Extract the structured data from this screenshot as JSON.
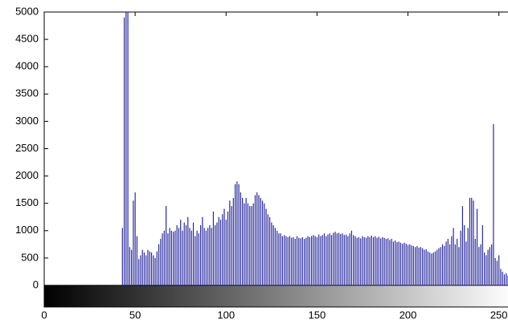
{
  "chart_data": {
    "type": "histogram-stem",
    "color": "#2a2a9e",
    "xlim": [
      0,
      255
    ],
    "ylim": [
      0,
      5000
    ],
    "xticks": [
      0,
      50,
      100,
      150,
      200,
      250
    ],
    "yticks": [
      0,
      500,
      1000,
      1500,
      2000,
      2500,
      3000,
      3500,
      4000,
      4500,
      5000
    ],
    "values": [
      0,
      0,
      0,
      0,
      0,
      0,
      0,
      0,
      0,
      0,
      0,
      0,
      0,
      0,
      0,
      0,
      0,
      0,
      0,
      0,
      0,
      0,
      0,
      0,
      0,
      0,
      0,
      0,
      0,
      0,
      0,
      0,
      0,
      0,
      0,
      0,
      0,
      0,
      0,
      0,
      0,
      0,
      0,
      1050,
      4900,
      5000,
      5000,
      700,
      650,
      1550,
      1700,
      900,
      480,
      550,
      650,
      600,
      550,
      650,
      620,
      600,
      550,
      500,
      620,
      750,
      850,
      950,
      1000,
      1450,
      950,
      1050,
      1000,
      980,
      1000,
      1100,
      1050,
      1200,
      1000,
      1150,
      1100,
      1250,
      1050,
      1000,
      1150,
      900,
      1000,
      950,
      1100,
      1250,
      1050,
      1000,
      1050,
      1100,
      1050,
      1350,
      1100,
      1150,
      1250,
      1200,
      1300,
      1400,
      1200,
      1350,
      1550,
      1450,
      1600,
      1850,
      1900,
      1850,
      1700,
      1600,
      1500,
      1600,
      1500,
      1450,
      1450,
      1500,
      1650,
      1700,
      1650,
      1600,
      1550,
      1500,
      1400,
      1300,
      1250,
      1150,
      1100,
      1050,
      1000,
      950,
      950,
      900,
      920,
      900,
      880,
      900,
      870,
      880,
      850,
      900,
      870,
      860,
      880,
      850,
      870,
      900,
      880,
      900,
      920,
      900,
      880,
      930,
      900,
      920,
      950,
      900,
      930,
      950,
      920,
      960,
      980,
      950,
      960,
      940,
      950,
      920,
      930,
      900,
      950,
      1000,
      920,
      900,
      870,
      880,
      860,
      900,
      880,
      870,
      900,
      880,
      910,
      880,
      900,
      870,
      890,
      860,
      880,
      870,
      850,
      860,
      830,
      850,
      800,
      820,
      790,
      800,
      780,
      760,
      780,
      760,
      740,
      750,
      730,
      720,
      700,
      720,
      690,
      700,
      680,
      650,
      660,
      620,
      600,
      580,
      600,
      620,
      650,
      680,
      700,
      750,
      720,
      800,
      850,
      750,
      900,
      1050,
      750,
      850,
      700,
      1000,
      1450,
      1100,
      800,
      1050,
      1600,
      1600,
      1550,
      850,
      1400,
      700,
      750,
      1100,
      600,
      550,
      650,
      700,
      750,
      2950,
      500,
      450,
      550,
      300,
      250,
      200,
      220,
      180
    ]
  }
}
